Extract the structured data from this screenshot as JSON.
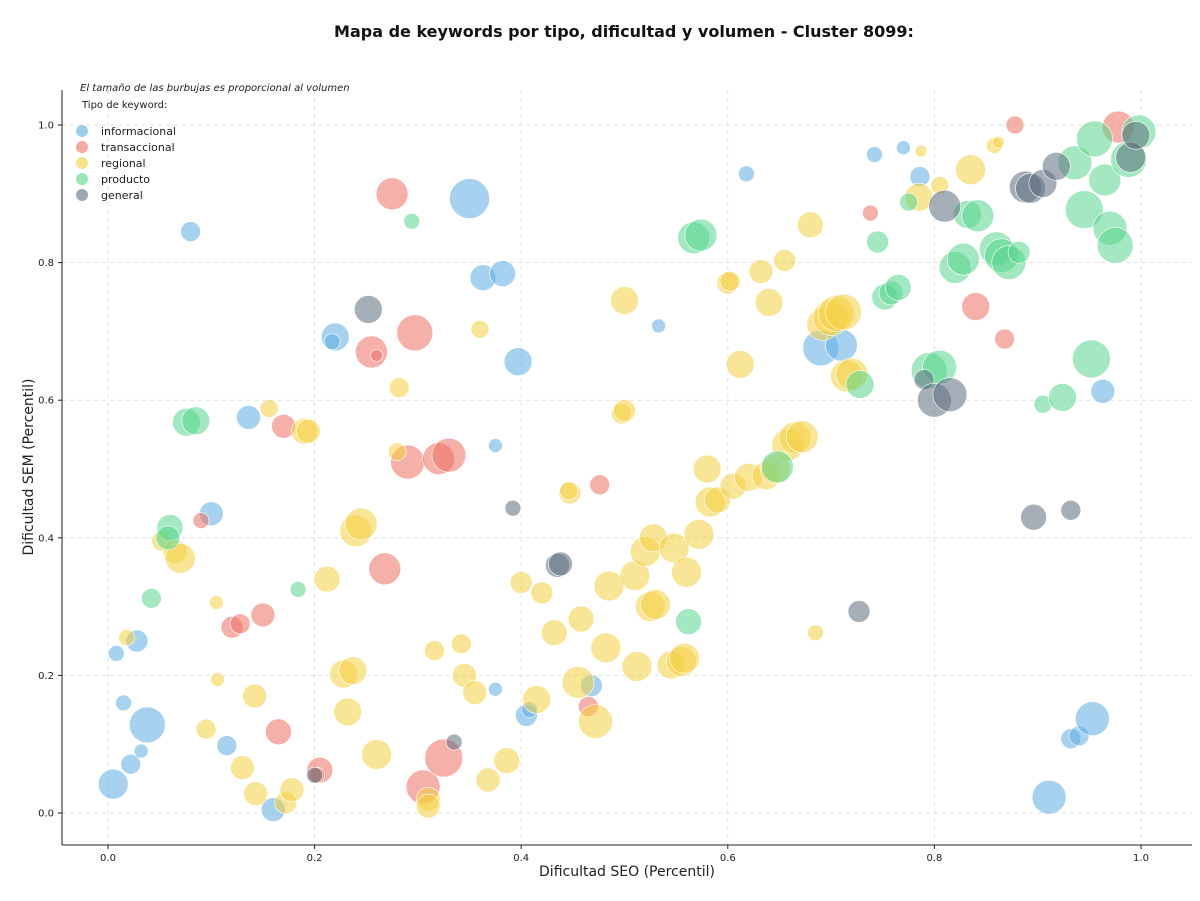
{
  "chart_data": {
    "type": "scatter",
    "title": "Mapa de keywords por tipo, dificultad y volumen - Cluster 8099:",
    "xlabel": "Dificultad SEO (Percentil)",
    "ylabel": "Dificultad SEM (Percentil)",
    "xlim": [
      -0.045,
      1.045
    ],
    "ylim": [
      -0.045,
      1.05
    ],
    "xticks": [
      "0.0",
      "0.2",
      "0.4",
      "0.6",
      "0.8",
      "1.0"
    ],
    "yticks": [
      "0.0",
      "0.2",
      "0.4",
      "0.6",
      "0.8",
      "1.0"
    ],
    "grid": true,
    "note": "El tamaño de las burbujas es proporcional al volumen",
    "legend": {
      "title": "Tipo de keyword:",
      "position": "top-left"
    },
    "series": [
      {
        "name": "informacional",
        "color": "#5dade2",
        "points": [
          [
            0.005,
            0.042,
            15
          ],
          [
            0.038,
            0.128,
            18
          ],
          [
            0.015,
            0.16,
            8
          ],
          [
            0.008,
            0.232,
            8
          ],
          [
            0.028,
            0.25,
            11
          ],
          [
            0.022,
            0.071,
            10
          ],
          [
            0.032,
            0.09,
            7
          ],
          [
            0.08,
            0.845,
            10
          ],
          [
            0.1,
            0.435,
            12
          ],
          [
            0.136,
            0.575,
            12
          ],
          [
            0.115,
            0.098,
            10
          ],
          [
            0.16,
            0.005,
            12
          ],
          [
            0.22,
            0.692,
            14
          ],
          [
            0.217,
            0.685,
            8
          ],
          [
            0.35,
            0.893,
            20
          ],
          [
            0.363,
            0.778,
            13
          ],
          [
            0.382,
            0.784,
            13
          ],
          [
            0.397,
            0.656,
            14
          ],
          [
            0.375,
            0.534,
            7
          ],
          [
            0.375,
            0.18,
            7
          ],
          [
            0.405,
            0.142,
            11
          ],
          [
            0.408,
            0.15,
            8
          ],
          [
            0.468,
            0.185,
            11
          ],
          [
            0.533,
            0.708,
            7
          ],
          [
            0.618,
            0.929,
            8
          ],
          [
            0.69,
            0.676,
            18
          ],
          [
            0.71,
            0.68,
            16
          ],
          [
            0.742,
            0.957,
            8
          ],
          [
            0.77,
            0.967,
            7
          ],
          [
            0.786,
            0.925,
            10
          ],
          [
            0.911,
            0.023,
            17
          ],
          [
            0.932,
            0.108,
            10
          ],
          [
            0.94,
            0.112,
            10
          ],
          [
            0.953,
            0.137,
            17
          ],
          [
            0.963,
            0.613,
            12
          ]
        ]
      },
      {
        "name": "transaccional",
        "color": "#ec7063",
        "points": [
          [
            0.09,
            0.425,
            8
          ],
          [
            0.12,
            0.27,
            11
          ],
          [
            0.128,
            0.275,
            10
          ],
          [
            0.15,
            0.288,
            12
          ],
          [
            0.17,
            0.562,
            12
          ],
          [
            0.165,
            0.118,
            13
          ],
          [
            0.205,
            0.062,
            13
          ],
          [
            0.202,
            0.055,
            8
          ],
          [
            0.255,
            0.67,
            16
          ],
          [
            0.26,
            0.665,
            6
          ],
          [
            0.275,
            0.9,
            16
          ],
          [
            0.268,
            0.355,
            16
          ],
          [
            0.29,
            0.51,
            17
          ],
          [
            0.297,
            0.698,
            18
          ],
          [
            0.32,
            0.515,
            16
          ],
          [
            0.33,
            0.52,
            17
          ],
          [
            0.305,
            0.038,
            17
          ],
          [
            0.325,
            0.08,
            19
          ],
          [
            0.476,
            0.477,
            10
          ],
          [
            0.465,
            0.155,
            10
          ],
          [
            0.738,
            0.872,
            8
          ],
          [
            0.84,
            0.736,
            14
          ],
          [
            0.868,
            0.689,
            10
          ],
          [
            0.878,
            1.0,
            9
          ],
          [
            0.978,
            0.997,
            16
          ]
        ]
      },
      {
        "name": "regional",
        "color": "#f4d03f",
        "points": [
          [
            0.018,
            0.255,
            8
          ],
          [
            0.052,
            0.395,
            10
          ],
          [
            0.065,
            0.38,
            12
          ],
          [
            0.07,
            0.37,
            15
          ],
          [
            0.095,
            0.122,
            10
          ],
          [
            0.105,
            0.306,
            7
          ],
          [
            0.106,
            0.194,
            7
          ],
          [
            0.13,
            0.066,
            12
          ],
          [
            0.143,
            0.028,
            12
          ],
          [
            0.142,
            0.17,
            12
          ],
          [
            0.156,
            0.588,
            9
          ],
          [
            0.172,
            0.015,
            11
          ],
          [
            0.178,
            0.034,
            12
          ],
          [
            0.19,
            0.555,
            13
          ],
          [
            0.194,
            0.555,
            12
          ],
          [
            0.212,
            0.34,
            13
          ],
          [
            0.228,
            0.202,
            14
          ],
          [
            0.237,
            0.207,
            14
          ],
          [
            0.232,
            0.147,
            14
          ],
          [
            0.24,
            0.41,
            16
          ],
          [
            0.245,
            0.42,
            16
          ],
          [
            0.26,
            0.085,
            15
          ],
          [
            0.28,
            0.525,
            9
          ],
          [
            0.282,
            0.618,
            10
          ],
          [
            0.31,
            0.02,
            12
          ],
          [
            0.31,
            0.01,
            12
          ],
          [
            0.316,
            0.236,
            10
          ],
          [
            0.342,
            0.246,
            10
          ],
          [
            0.345,
            0.2,
            12
          ],
          [
            0.355,
            0.175,
            12
          ],
          [
            0.36,
            0.703,
            9
          ],
          [
            0.368,
            0.048,
            12
          ],
          [
            0.386,
            0.076,
            13
          ],
          [
            0.4,
            0.335,
            11
          ],
          [
            0.415,
            0.165,
            14
          ],
          [
            0.42,
            0.32,
            11
          ],
          [
            0.432,
            0.262,
            13
          ],
          [
            0.447,
            0.465,
            11
          ],
          [
            0.446,
            0.468,
            9
          ],
          [
            0.455,
            0.19,
            16
          ],
          [
            0.458,
            0.282,
            13
          ],
          [
            0.472,
            0.133,
            17
          ],
          [
            0.482,
            0.24,
            15
          ],
          [
            0.485,
            0.33,
            15
          ],
          [
            0.497,
            0.58,
            10
          ],
          [
            0.5,
            0.585,
            11
          ],
          [
            0.5,
            0.745,
            14
          ],
          [
            0.51,
            0.345,
            15
          ],
          [
            0.512,
            0.213,
            15
          ],
          [
            0.52,
            0.38,
            15
          ],
          [
            0.525,
            0.3,
            15
          ],
          [
            0.53,
            0.303,
            15
          ],
          [
            0.528,
            0.4,
            14
          ],
          [
            0.545,
            0.215,
            14
          ],
          [
            0.548,
            0.385,
            15
          ],
          [
            0.555,
            0.22,
            15
          ],
          [
            0.558,
            0.225,
            15
          ],
          [
            0.56,
            0.35,
            15
          ],
          [
            0.572,
            0.405,
            15
          ],
          [
            0.58,
            0.5,
            14
          ],
          [
            0.583,
            0.452,
            15
          ],
          [
            0.59,
            0.455,
            13
          ],
          [
            0.6,
            0.77,
            11
          ],
          [
            0.602,
            0.773,
            10
          ],
          [
            0.605,
            0.475,
            13
          ],
          [
            0.612,
            0.652,
            14
          ],
          [
            0.62,
            0.488,
            14
          ],
          [
            0.632,
            0.787,
            12
          ],
          [
            0.637,
            0.49,
            14
          ],
          [
            0.64,
            0.742,
            14
          ],
          [
            0.646,
            0.5,
            15
          ],
          [
            0.655,
            0.803,
            11
          ],
          [
            0.658,
            0.535,
            16
          ],
          [
            0.665,
            0.545,
            16
          ],
          [
            0.672,
            0.547,
            16
          ],
          [
            0.68,
            0.855,
            13
          ],
          [
            0.685,
            0.262,
            8
          ],
          [
            0.692,
            0.71,
            16
          ],
          [
            0.7,
            0.72,
            18
          ],
          [
            0.705,
            0.726,
            18
          ],
          [
            0.712,
            0.728,
            18
          ],
          [
            0.715,
            0.635,
            16
          ],
          [
            0.72,
            0.638,
            16
          ],
          [
            0.785,
            0.895,
            14
          ],
          [
            0.787,
            0.962,
            6
          ],
          [
            0.805,
            0.912,
            9
          ],
          [
            0.835,
            0.935,
            15
          ],
          [
            0.858,
            0.97,
            8
          ],
          [
            0.862,
            0.975,
            6
          ]
        ]
      },
      {
        "name": "producto",
        "color": "#58d68d",
        "points": [
          [
            0.042,
            0.312,
            10
          ],
          [
            0.06,
            0.415,
            13
          ],
          [
            0.058,
            0.4,
            12
          ],
          [
            0.076,
            0.568,
            14
          ],
          [
            0.085,
            0.57,
            14
          ],
          [
            0.184,
            0.325,
            8
          ],
          [
            0.294,
            0.86,
            8
          ],
          [
            0.562,
            0.278,
            13
          ],
          [
            0.567,
            0.836,
            16
          ],
          [
            0.574,
            0.84,
            16
          ],
          [
            0.648,
            0.503,
            16
          ],
          [
            0.728,
            0.623,
            14
          ],
          [
            0.745,
            0.83,
            11
          ],
          [
            0.752,
            0.75,
            13
          ],
          [
            0.758,
            0.756,
            12
          ],
          [
            0.765,
            0.764,
            13
          ],
          [
            0.775,
            0.888,
            9
          ],
          [
            0.795,
            0.643,
            18
          ],
          [
            0.805,
            0.648,
            17
          ],
          [
            0.82,
            0.793,
            16
          ],
          [
            0.828,
            0.805,
            16
          ],
          [
            0.832,
            0.87,
            14
          ],
          [
            0.842,
            0.868,
            16
          ],
          [
            0.86,
            0.82,
            17
          ],
          [
            0.865,
            0.81,
            17
          ],
          [
            0.872,
            0.8,
            17
          ],
          [
            0.882,
            0.815,
            11
          ],
          [
            0.905,
            0.594,
            9
          ],
          [
            0.924,
            0.604,
            14
          ],
          [
            0.936,
            0.945,
            17
          ],
          [
            0.945,
            0.877,
            19
          ],
          [
            0.952,
            0.66,
            19
          ],
          [
            0.955,
            0.98,
            18
          ],
          [
            0.965,
            0.92,
            16
          ],
          [
            0.97,
            0.85,
            17
          ],
          [
            0.975,
            0.825,
            18
          ],
          [
            0.988,
            0.95,
            18
          ],
          [
            0.998,
            0.99,
            17
          ]
        ]
      },
      {
        "name": "general",
        "color": "#5d6d7e",
        "points": [
          [
            0.2,
            0.055,
            8
          ],
          [
            0.252,
            0.732,
            14
          ],
          [
            0.335,
            0.103,
            8
          ],
          [
            0.392,
            0.443,
            8
          ],
          [
            0.435,
            0.36,
            12
          ],
          [
            0.438,
            0.362,
            12
          ],
          [
            0.727,
            0.293,
            11
          ],
          [
            0.79,
            0.63,
            10
          ],
          [
            0.8,
            0.6,
            17
          ],
          [
            0.81,
            0.882,
            16
          ],
          [
            0.815,
            0.608,
            17
          ],
          [
            0.888,
            0.91,
            16
          ],
          [
            0.893,
            0.908,
            15
          ],
          [
            0.896,
            0.43,
            13
          ],
          [
            0.905,
            0.915,
            14
          ],
          [
            0.918,
            0.94,
            14
          ],
          [
            0.932,
            0.44,
            10
          ],
          [
            0.99,
            0.953,
            15
          ],
          [
            0.995,
            0.985,
            14
          ]
        ]
      }
    ]
  }
}
